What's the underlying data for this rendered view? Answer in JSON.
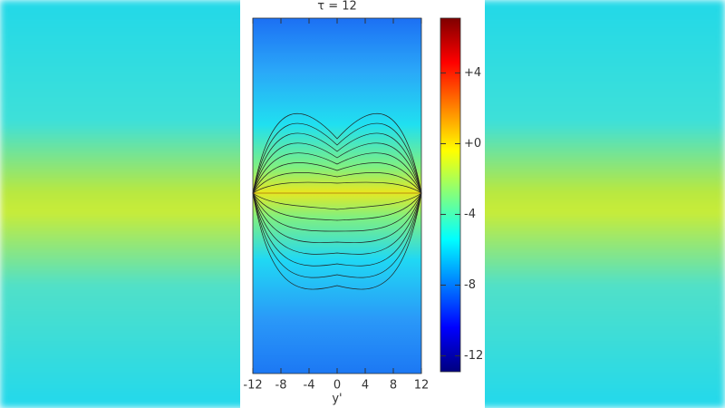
{
  "chart_data": {
    "type": "heatmap",
    "title": "τ = 12",
    "xlabel": "y'",
    "xlim": [
      -12,
      12
    ],
    "xticks": [
      -12,
      -8,
      -4,
      0,
      4,
      8,
      12
    ],
    "clim": [
      -12.9,
      7.1
    ],
    "cticks": [
      {
        "value": 4,
        "label": "+4"
      },
      {
        "value": 0,
        "label": "+0"
      },
      -4,
      -8,
      -12
    ],
    "colormap": [
      "#00007f",
      "#0000ff",
      "#0080ff",
      "#00ffff",
      "#80ff80",
      "#ffff00",
      "#ff8000",
      "#ff0000",
      "#7f0000"
    ]
  }
}
